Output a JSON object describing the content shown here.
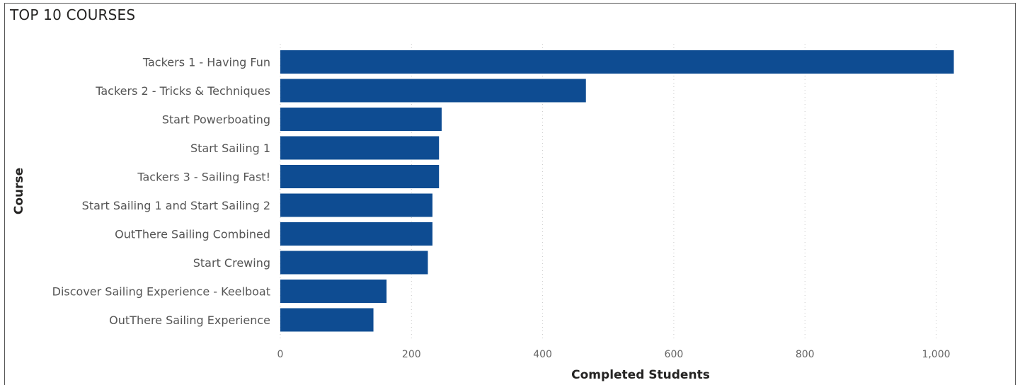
{
  "chart_data": {
    "type": "bar",
    "orientation": "horizontal",
    "title": "TOP 10 COURSES",
    "xlabel": "Completed Students",
    "ylabel": "Course",
    "categories": [
      "Tackers 1 - Having Fun",
      "Tackers 2 - Tricks & Techniques",
      "Start Powerboating",
      "Start Sailing 1",
      "Tackers 3 - Sailing Fast!",
      "Start Sailing 1 and Start Sailing 2",
      "OutThere Sailing Combined",
      "Start Crewing",
      "Discover Sailing Experience - Keelboat",
      "OutThere Sailing Experience"
    ],
    "values": [
      1027,
      466,
      246,
      242,
      242,
      232,
      232,
      225,
      162,
      142
    ],
    "xlim": [
      0,
      1050
    ],
    "xticks": [
      0,
      200,
      400,
      600,
      800,
      1000
    ],
    "xtick_labels": [
      "0",
      "200",
      "400",
      "600",
      "800",
      "1,000"
    ],
    "grid": "vertical dotted",
    "bar_color": "#0E4C92"
  }
}
